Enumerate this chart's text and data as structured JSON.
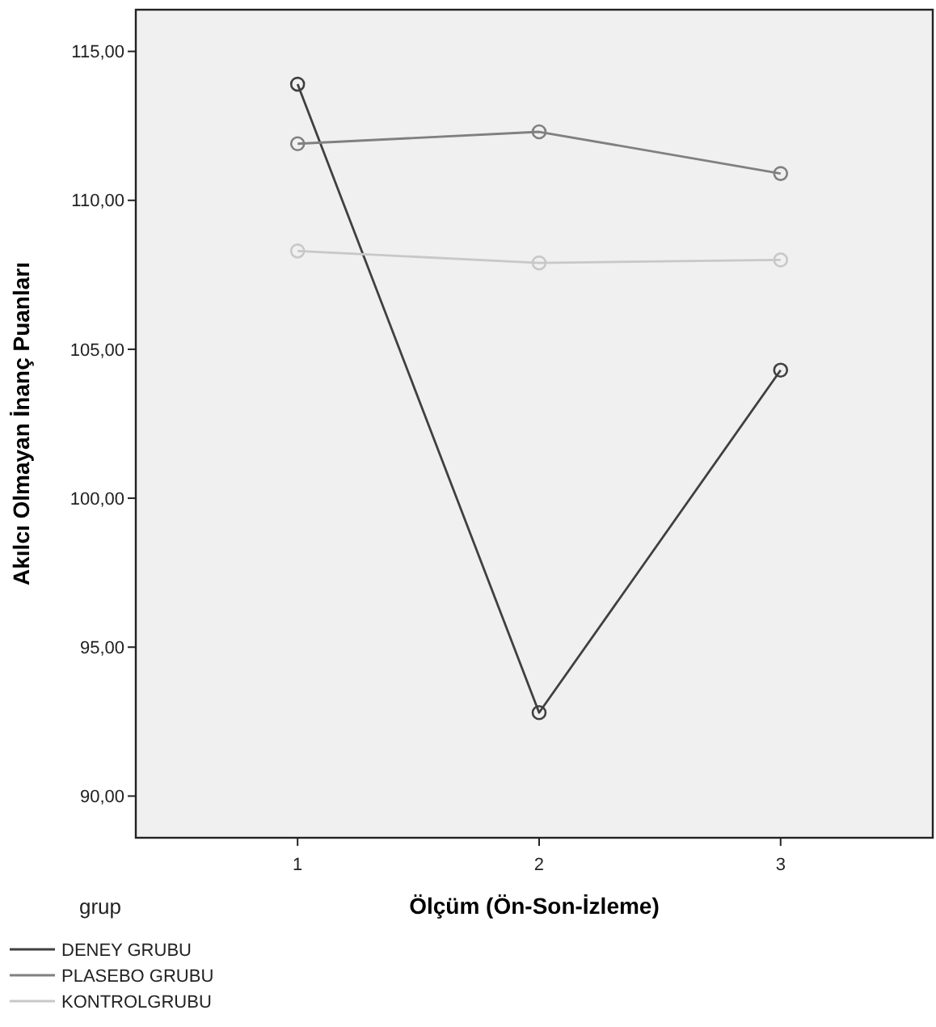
{
  "chart_data": {
    "type": "line",
    "xlabel": "Ölçüm (Ön-Son-İzleme)",
    "ylabel": "Akılcı Olmayan İnanç Puanları",
    "legend_title": "grup",
    "x": [
      1,
      2,
      3
    ],
    "xlim": [
      0.33,
      3.63
    ],
    "xticks": [
      1,
      2,
      3
    ],
    "ylim": [
      88.6,
      116.4
    ],
    "yticks": [
      {
        "value": 90,
        "label": "90,00"
      },
      {
        "value": 95,
        "label": "95,00"
      },
      {
        "value": 100,
        "label": "100,00"
      },
      {
        "value": 105,
        "label": "105,00"
      },
      {
        "value": 110,
        "label": "110,00"
      },
      {
        "value": 115,
        "label": "115,00"
      }
    ],
    "series": [
      {
        "name": "DENEY GRUBU",
        "color": "#404040",
        "values": [
          113.9,
          92.8,
          104.3
        ]
      },
      {
        "name": "PLASEBO GRUBU",
        "color": "#808080",
        "values": [
          111.9,
          112.3,
          110.9
        ]
      },
      {
        "name": "KONTROLGRUBU",
        "color": "#c8c8c8",
        "values": [
          108.3,
          107.9,
          108.0
        ]
      }
    ],
    "marker": "circle",
    "line_style": "solid",
    "grid": false,
    "legend": "bottom left"
  }
}
